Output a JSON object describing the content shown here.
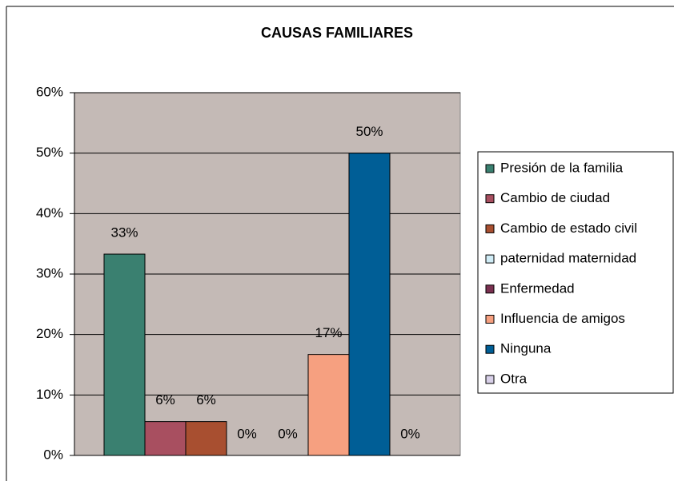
{
  "chart_data": {
    "type": "bar",
    "title": "CAUSAS FAMILIARES",
    "series": [
      {
        "name": "Presión de la familia",
        "color": "#3a8070",
        "values": [
          33.3
        ],
        "value_labels": [
          "33%"
        ]
      },
      {
        "name": "Cambio de ciudad",
        "color": "#a84f60",
        "values": [
          5.6
        ],
        "value_labels": [
          "6%"
        ]
      },
      {
        "name": "Cambio de estado civil",
        "color": "#a84f30",
        "values": [
          5.6
        ],
        "value_labels": [
          "6%"
        ]
      },
      {
        "name": "paternidad maternidad",
        "color": "#d0ecf6",
        "values": [
          0
        ],
        "value_labels": [
          "0%"
        ]
      },
      {
        "name": "Enfermedad",
        "color": "#7a3050",
        "values": [
          0
        ],
        "value_labels": [
          "0%"
        ]
      },
      {
        "name": "Influencia de amigos",
        "color": "#f6a080",
        "values": [
          16.7
        ],
        "value_labels": [
          "17%"
        ]
      },
      {
        "name": "Ninguna",
        "color": "#005e96",
        "values": [
          50
        ],
        "value_labels": [
          "50%"
        ]
      },
      {
        "name": "Otra",
        "color": "#d8d0e8",
        "values": [
          0
        ],
        "value_labels": [
          "0%"
        ]
      }
    ],
    "ylim": [
      0,
      60
    ],
    "yticks": [
      {
        "value": 0,
        "label": "0%"
      },
      {
        "value": 10,
        "label": "10%"
      },
      {
        "value": 20,
        "label": "20%"
      },
      {
        "value": 30,
        "label": "30%"
      },
      {
        "value": 40,
        "label": "40%"
      },
      {
        "value": 50,
        "label": "50%"
      },
      {
        "value": 60,
        "label": "60%"
      }
    ],
    "grid": true,
    "legend": "right"
  }
}
